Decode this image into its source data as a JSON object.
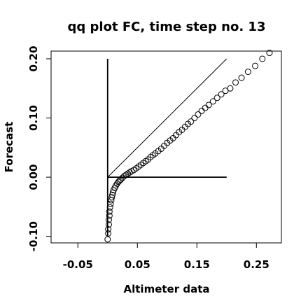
{
  "chart_data": {
    "type": "scatter",
    "title": "qq plot FC, time step no. 13",
    "x_label": "Altimeter data",
    "y_label": "Forecast",
    "xlim": [
      -0.095,
      0.292
    ],
    "ylim": [
      -0.111,
      0.213
    ],
    "xticks": [
      {
        "value": -0.05,
        "label": "-0.05"
      },
      {
        "value": 0.05,
        "label": "0.05"
      },
      {
        "value": 0.15,
        "label": "0.15"
      },
      {
        "value": 0.25,
        "label": "0.25"
      }
    ],
    "yticks": [
      {
        "value": -0.1,
        "label": "-0.10"
      },
      {
        "value": 0,
        "label": "0.00"
      },
      {
        "value": 0.1,
        "label": "0.10"
      },
      {
        "value": 0.2,
        "label": "0.20"
      }
    ],
    "reference_lines": [
      {
        "x": [
          0,
          0
        ],
        "y": [
          -0.1,
          0.2
        ]
      },
      {
        "x": [
          0,
          0.2
        ],
        "y": [
          0,
          0
        ]
      },
      {
        "x": [
          0,
          0.2
        ],
        "y": [
          0,
          0.2
        ]
      }
    ],
    "x": [
      0.0,
      0.001,
      0.001,
      0.002,
      0.002,
      0.003,
      0.003,
      0.004,
      0.005,
      0.006,
      0.007,
      0.008,
      0.009,
      0.01,
      0.012,
      0.014,
      0.016,
      0.018,
      0.02,
      0.022,
      0.025,
      0.028,
      0.031,
      0.034,
      0.037,
      0.04,
      0.044,
      0.048,
      0.052,
      0.056,
      0.06,
      0.064,
      0.068,
      0.072,
      0.076,
      0.08,
      0.085,
      0.09,
      0.095,
      0.1,
      0.105,
      0.11,
      0.115,
      0.12,
      0.125,
      0.13,
      0.135,
      0.14,
      0.146,
      0.152,
      0.158,
      0.164,
      0.17,
      0.177,
      0.184,
      0.191,
      0.198,
      0.206,
      0.215,
      0.225,
      0.236,
      0.248,
      0.26,
      0.272
    ],
    "values": [
      -0.105,
      -0.095,
      -0.088,
      -0.08,
      -0.072,
      -0.065,
      -0.058,
      -0.051,
      -0.045,
      -0.039,
      -0.034,
      -0.03,
      -0.026,
      -0.022,
      -0.018,
      -0.014,
      -0.011,
      -0.008,
      -0.006,
      -0.004,
      -0.001,
      0.002,
      0.004,
      0.006,
      0.008,
      0.01,
      0.012,
      0.015,
      0.018,
      0.021,
      0.024,
      0.027,
      0.03,
      0.034,
      0.037,
      0.04,
      0.044,
      0.048,
      0.053,
      0.058,
      0.062,
      0.066,
      0.071,
      0.076,
      0.08,
      0.085,
      0.09,
      0.094,
      0.1,
      0.106,
      0.112,
      0.117,
      0.122,
      0.128,
      0.134,
      0.14,
      0.146,
      0.15,
      0.16,
      0.168,
      0.178,
      0.188,
      0.2,
      0.21
    ]
  }
}
